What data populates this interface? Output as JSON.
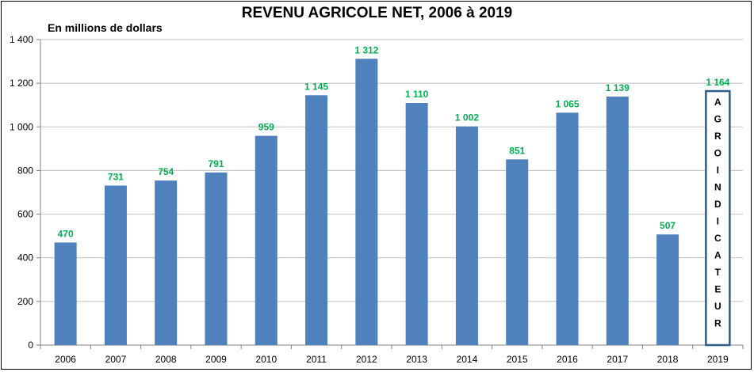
{
  "chart_data": {
    "type": "bar",
    "title": "REVENU AGRICOLE NET, 2006 à 2019",
    "ylabel": "En millions de dollars",
    "xlabel": "",
    "categories": [
      "2006",
      "2007",
      "2008",
      "2009",
      "2010",
      "2011",
      "2012",
      "2013",
      "2014",
      "2015",
      "2016",
      "2017",
      "2018",
      "2019"
    ],
    "values": [
      470,
      731,
      754,
      791,
      959,
      1145,
      1312,
      1110,
      1002,
      851,
      1065,
      1139,
      507,
      1164
    ],
    "data_labels": [
      "470",
      "731",
      "754",
      "791",
      "959",
      "1 145",
      "1 312",
      "1 110",
      "1 002",
      "851",
      "1 065",
      "1 139",
      "507",
      "1 164"
    ],
    "ylim": [
      0,
      1400
    ],
    "yticks": [
      0,
      200,
      400,
      600,
      800,
      1000,
      1200,
      1400
    ],
    "ytick_labels": [
      "0",
      "200",
      "400",
      "600",
      "800",
      "1 000",
      "1 200",
      "1 400"
    ],
    "grid": true,
    "bar_color": "#4F81BD",
    "label_color": "#00B050",
    "highlight": {
      "category": "2019",
      "style": "outlined",
      "outline_color": "#2E5C8A",
      "vertical_text": "AGROINDICATEUR"
    }
  }
}
